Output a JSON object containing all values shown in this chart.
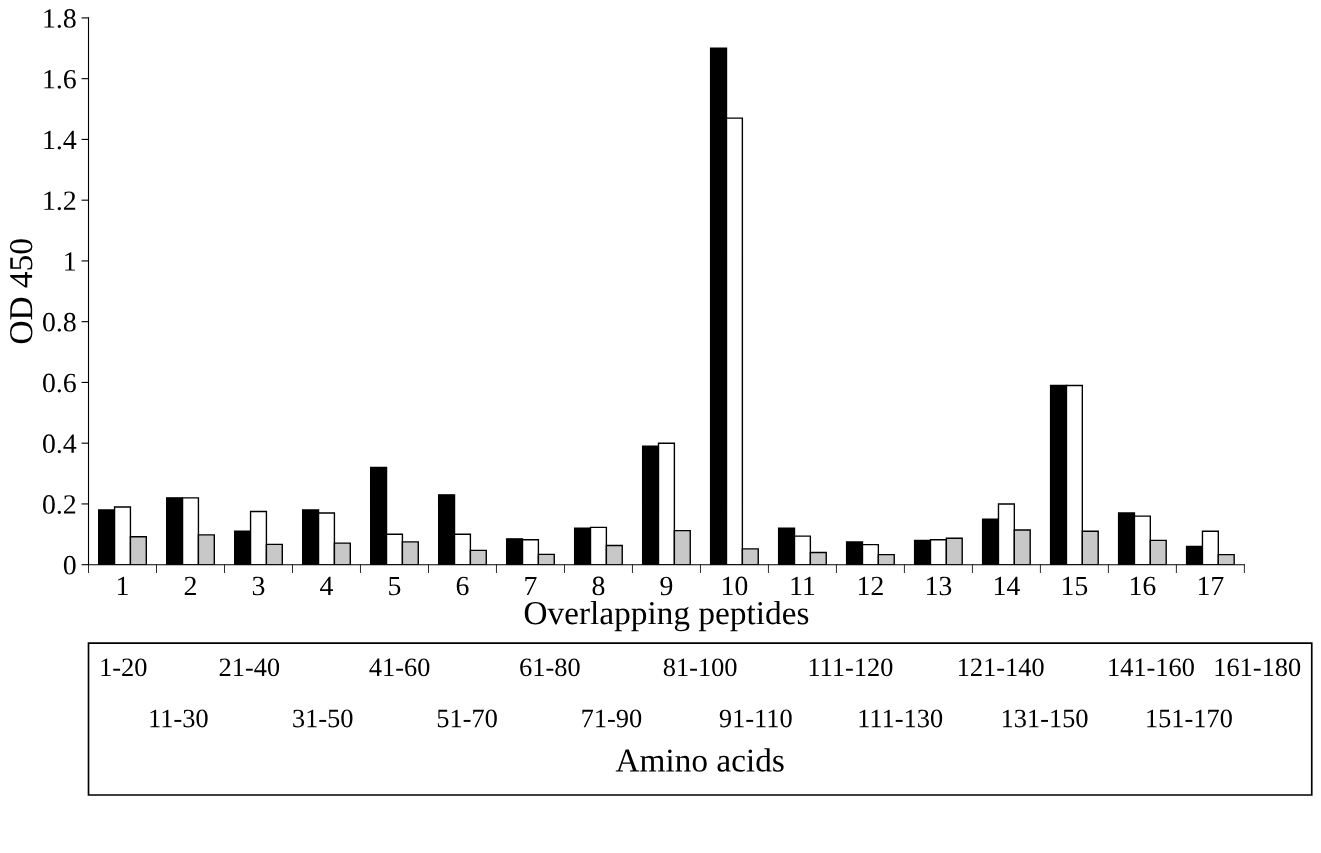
{
  "chart_data": {
    "type": "bar",
    "xlabel": "Overlapping peptides",
    "ylabel": "OD 450",
    "categories": [
      "1",
      "2",
      "3",
      "4",
      "5",
      "6",
      "7",
      "8",
      "9",
      "10",
      "11",
      "12",
      "13",
      "14",
      "15",
      "16",
      "17"
    ],
    "series": [
      {
        "color": "#000000",
        "values": [
          0.18,
          0.22,
          0.11,
          0.18,
          0.32,
          0.23,
          0.085,
          0.12,
          0.39,
          1.7,
          0.12,
          0.075,
          0.08,
          0.15,
          0.59,
          0.17,
          0.06
        ]
      },
      {
        "color": "#ffffff",
        "values": [
          0.19,
          0.22,
          0.175,
          0.17,
          0.1,
          0.1,
          0.082,
          0.123,
          0.4,
          1.47,
          0.094,
          0.066,
          0.082,
          0.2,
          0.59,
          0.16,
          0.11
        ]
      },
      {
        "color": "#c8c8c8",
        "values": [
          0.092,
          0.098,
          0.067,
          0.071,
          0.075,
          0.047,
          0.034,
          0.063,
          0.112,
          0.052,
          0.04,
          0.033,
          0.087,
          0.114,
          0.11,
          0.08,
          0.033
        ]
      }
    ],
    "ylim": [
      0,
      1.8
    ],
    "yticks": [
      0,
      0.2,
      0.4,
      0.6,
      0.8,
      1,
      1.2,
      1.4,
      1.6,
      1.8
    ],
    "grid": false,
    "legend": false,
    "annotations": [
      "1-20",
      "21-40",
      "41-60",
      "61-80",
      "81-100",
      "111-120",
      "121-140",
      "141-160",
      "161-180",
      "11-30",
      "31-50",
      "51-70",
      "71-90",
      "91-110",
      "111-130",
      "131-150",
      "151-170",
      "Amino acids"
    ]
  }
}
